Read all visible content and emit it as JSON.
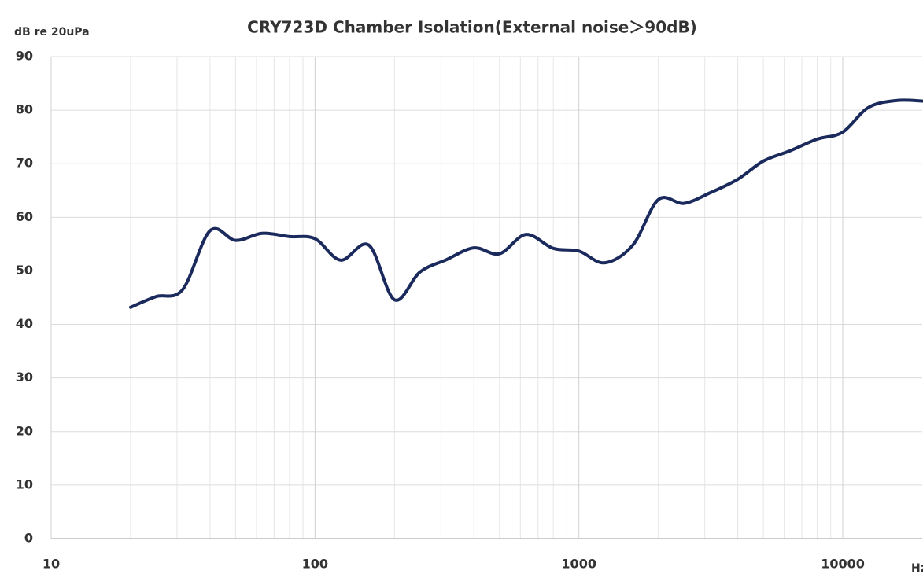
{
  "chart_data": {
    "type": "line",
    "title": "CRY723D Chamber Isolation(External noise＞90dB)",
    "y_label": "dB re 20uPa",
    "x_label": "Hz",
    "x_scale": "log",
    "grid": true,
    "minor_grid": true,
    "xlim": [
      10,
      20000
    ],
    "xticks": [
      10,
      100,
      1000,
      10000
    ],
    "ylim": [
      0,
      90
    ],
    "yticks": [
      0,
      10,
      20,
      30,
      40,
      50,
      60,
      70,
      80,
      90
    ],
    "x": [
      20,
      25,
      31.5,
      40,
      50,
      63,
      80,
      100,
      125,
      160,
      200,
      250,
      315,
      400,
      500,
      630,
      800,
      1000,
      1250,
      1600,
      2000,
      2500,
      3150,
      4000,
      5000,
      6300,
      8000,
      10000,
      12500,
      16000,
      20000
    ],
    "series": [
      {
        "color": "#1b2a5c",
        "values": [
          43.2,
          45.2,
          46.5,
          57.5,
          55.7,
          57,
          56.4,
          56,
          52,
          54.8,
          44.6,
          49.8,
          52.1,
          54.3,
          53.2,
          56.8,
          54.2,
          53.7,
          51.5,
          54.8,
          63.3,
          62.6,
          64.6,
          67.1,
          70.5,
          72.4,
          74.6,
          75.9,
          80.5,
          81.8,
          81.7
        ]
      }
    ]
  }
}
